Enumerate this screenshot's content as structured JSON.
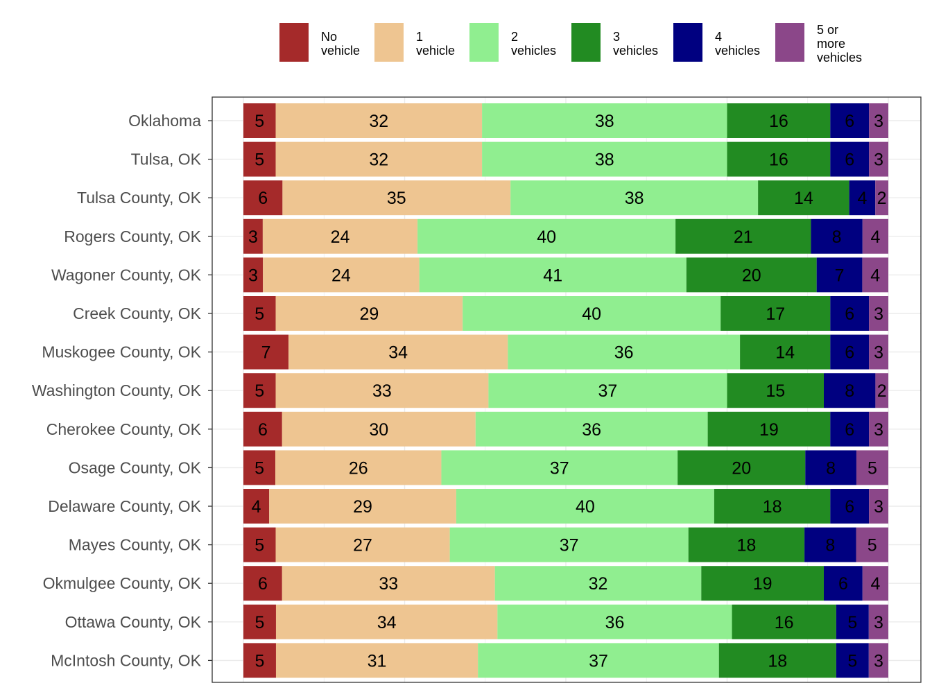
{
  "chart_data": {
    "type": "bar",
    "orientation": "horizontal",
    "stacked": true,
    "xlim": [
      0,
      100
    ],
    "grid": true,
    "legend_position": "top",
    "categories": [
      "Oklahoma",
      "Tulsa, OK",
      "Tulsa County, OK",
      "Rogers County, OK",
      "Wagoner County, OK",
      "Creek County, OK",
      "Muskogee County, OK",
      "Washington County, OK",
      "Cherokee County, OK",
      "Osage County, OK",
      "Delaware County, OK",
      "Mayes County, OK",
      "Okmulgee County, OK",
      "Ottawa County, OK",
      "McIntosh County, OK"
    ],
    "series": [
      {
        "name": "No vehicle",
        "color": "#A52A2A",
        "values": [
          5,
          5,
          6,
          3,
          3,
          5,
          7,
          5,
          6,
          5,
          4,
          5,
          6,
          5,
          5
        ]
      },
      {
        "name": "1 vehicle",
        "color": "#EEC591",
        "values": [
          32,
          32,
          35,
          24,
          24,
          29,
          34,
          33,
          30,
          26,
          29,
          27,
          33,
          34,
          31
        ]
      },
      {
        "name": "2 vehicles",
        "color": "#90EE90",
        "values": [
          38,
          38,
          38,
          40,
          41,
          40,
          36,
          37,
          36,
          37,
          40,
          37,
          32,
          36,
          37
        ]
      },
      {
        "name": "3 vehicles",
        "color": "#228B22",
        "values": [
          16,
          16,
          14,
          21,
          20,
          17,
          14,
          15,
          19,
          20,
          18,
          18,
          19,
          16,
          18
        ]
      },
      {
        "name": "4 vehicles",
        "color": "#000080",
        "values": [
          6,
          6,
          4,
          8,
          7,
          6,
          6,
          8,
          6,
          8,
          6,
          8,
          6,
          5,
          5
        ]
      },
      {
        "name": "5 or more vehicles",
        "color": "#8B4789",
        "values": [
          3,
          3,
          2,
          4,
          4,
          3,
          3,
          2,
          3,
          5,
          3,
          5,
          4,
          3,
          3
        ]
      }
    ]
  },
  "legend": {
    "labels": [
      [
        "No",
        "vehicle"
      ],
      [
        "1",
        "vehicle"
      ],
      [
        "2",
        "vehicles"
      ],
      [
        "3",
        "vehicles"
      ],
      [
        "4",
        "vehicles"
      ],
      [
        "5 or",
        "more",
        "vehicles"
      ]
    ]
  }
}
